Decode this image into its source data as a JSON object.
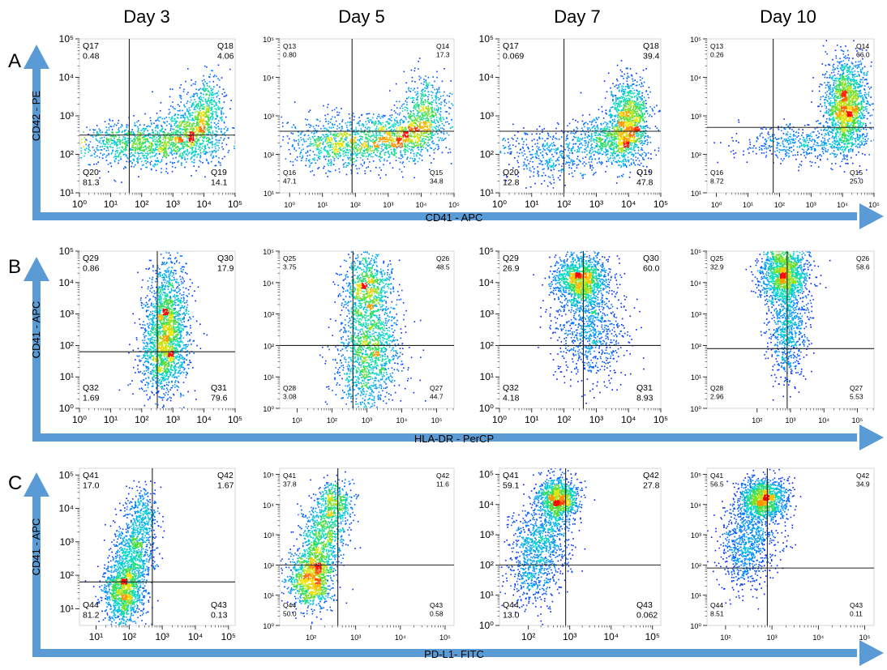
{
  "columns": [
    "Day 3",
    "Day 5",
    "Day 7",
    "Day 10"
  ],
  "panel_letters": [
    "A",
    "B",
    "C"
  ],
  "axes": {
    "x": [
      "CD41 - APC",
      "HLA-DR - PerCP",
      "PD-L1- FITC"
    ],
    "y": [
      "CD42 - PE",
      "CD41 - APC",
      "CD41 - APC"
    ]
  },
  "colors": {
    "arrow": "#5b9bd5",
    "quadrant_line": "#222222",
    "density_low": "#0000ff",
    "density_high": "#ff0000"
  },
  "chart_data": [
    {
      "type": "scatter",
      "row": "A",
      "day": "Day 3",
      "xlabel": "CD41 - APC",
      "ylabel": "CD42 - PE",
      "xlim": [
        0,
        5
      ],
      "ylim": [
        1,
        5
      ],
      "x_ticks": [
        0,
        1,
        2,
        3,
        4,
        5
      ],
      "y_ticks": [
        1,
        2,
        3,
        4,
        5
      ],
      "gate": {
        "x": 1.6,
        "y": 2.5
      },
      "quadrants": [
        {
          "label": "Q17",
          "value": "0.48",
          "pos": "tl"
        },
        {
          "label": "Q18",
          "value": "4.06",
          "pos": "tr"
        },
        {
          "label": "Q20",
          "value": "81.3",
          "pos": "bl"
        },
        {
          "label": "Q19",
          "value": "14.1",
          "pos": "br"
        }
      ],
      "clusters": [
        {
          "x": 2.2,
          "y": 2.3,
          "sx": 1.2,
          "sy": 0.3,
          "w": 0.55
        },
        {
          "x": 3.6,
          "y": 2.6,
          "sx": 0.5,
          "sy": 0.4,
          "w": 0.25
        },
        {
          "x": 4.0,
          "y": 3.2,
          "sx": 0.35,
          "sy": 0.45,
          "w": 0.2
        }
      ]
    },
    {
      "type": "scatter",
      "row": "A",
      "day": "Day 5",
      "xlabel": "CD41 - APC",
      "ylabel": "CD42 - PE",
      "xlim": [
        -0.3,
        5
      ],
      "ylim": [
        1,
        5
      ],
      "x_ticks": [
        0,
        1,
        2,
        3,
        4,
        5
      ],
      "y_ticks": [
        1,
        2,
        3,
        4,
        5
      ],
      "gate": {
        "x": 1.9,
        "y": 2.6
      },
      "quadrants": [
        {
          "label": "Q13",
          "value": "0.80",
          "pos": "tl"
        },
        {
          "label": "Q14",
          "value": "17.3",
          "pos": "tr"
        },
        {
          "label": "Q16",
          "value": "47.1",
          "pos": "bl"
        },
        {
          "label": "Q15",
          "value": "34.8",
          "pos": "br"
        }
      ],
      "clusters": [
        {
          "x": 1.6,
          "y": 2.3,
          "sx": 0.9,
          "sy": 0.35,
          "w": 0.45
        },
        {
          "x": 3.4,
          "y": 2.5,
          "sx": 0.6,
          "sy": 0.3,
          "w": 0.3
        },
        {
          "x": 4.1,
          "y": 3.1,
          "sx": 0.35,
          "sy": 0.5,
          "w": 0.25
        }
      ]
    },
    {
      "type": "scatter",
      "row": "A",
      "day": "Day 7",
      "xlabel": "CD41 - APC",
      "ylabel": "CD42 - PE",
      "xlim": [
        0,
        5
      ],
      "ylim": [
        1,
        5
      ],
      "x_ticks": [
        0,
        1,
        2,
        3,
        4,
        5
      ],
      "y_ticks": [
        1,
        2,
        3,
        4,
        5
      ],
      "gate": {
        "x": 2.0,
        "y": 2.6
      },
      "quadrants": [
        {
          "label": "Q17",
          "value": "0.069",
          "pos": "tl"
        },
        {
          "label": "Q18",
          "value": "39.4",
          "pos": "tr"
        },
        {
          "label": "Q20",
          "value": "12.8",
          "pos": "bl"
        },
        {
          "label": "Q19",
          "value": "47.8",
          "pos": "br"
        }
      ],
      "clusters": [
        {
          "x": 1.5,
          "y": 2.0,
          "sx": 0.8,
          "sy": 0.35,
          "w": 0.2
        },
        {
          "x": 3.4,
          "y": 2.4,
          "sx": 0.6,
          "sy": 0.35,
          "w": 0.3
        },
        {
          "x": 4.0,
          "y": 2.9,
          "sx": 0.3,
          "sy": 0.55,
          "w": 0.5
        }
      ]
    },
    {
      "type": "scatter",
      "row": "A",
      "day": "Day 10",
      "xlabel": "CD41 - APC",
      "ylabel": "CD42 - PE",
      "xlim": [
        -0.3,
        5
      ],
      "ylim": [
        1,
        5
      ],
      "x_ticks": [
        0,
        1,
        2,
        3,
        4,
        5
      ],
      "y_ticks": [
        1,
        2,
        3,
        4,
        5
      ],
      "gate": {
        "x": 1.8,
        "y": 2.7
      },
      "quadrants": [
        {
          "label": "Q13",
          "value": "0.26",
          "pos": "tl"
        },
        {
          "label": "Q14",
          "value": "66.0",
          "pos": "tr"
        },
        {
          "label": "Q16",
          "value": "8.72",
          "pos": "bl"
        },
        {
          "label": "Q15",
          "value": "25.0",
          "pos": "br"
        }
      ],
      "clusters": [
        {
          "x": 2.8,
          "y": 2.3,
          "sx": 1.0,
          "sy": 0.25,
          "w": 0.25
        },
        {
          "x": 4.1,
          "y": 3.3,
          "sx": 0.35,
          "sy": 0.6,
          "w": 0.75
        }
      ]
    },
    {
      "type": "scatter",
      "row": "B",
      "day": "Day 3",
      "xlabel": "HLA-DR - PerCP",
      "ylabel": "CD41 - APC",
      "xlim": [
        0,
        5
      ],
      "ylim": [
        0,
        5
      ],
      "x_ticks": [
        0,
        1,
        2,
        3,
        4,
        5
      ],
      "y_ticks": [
        0,
        1,
        2,
        3,
        4,
        5
      ],
      "gate": {
        "x": 2.5,
        "y": 1.8
      },
      "quadrants": [
        {
          "label": "Q29",
          "value": "0.86",
          "pos": "tl"
        },
        {
          "label": "Q30",
          "value": "17.9",
          "pos": "tr"
        },
        {
          "label": "Q32",
          "value": "1.69",
          "pos": "bl"
        },
        {
          "label": "Q31",
          "value": "79.6",
          "pos": "br"
        }
      ],
      "clusters": [
        {
          "x": 2.8,
          "y": 2.8,
          "sx": 0.35,
          "sy": 1.0,
          "w": 0.7
        },
        {
          "x": 2.6,
          "y": 1.6,
          "sx": 0.4,
          "sy": 0.6,
          "w": 0.3
        }
      ]
    },
    {
      "type": "scatter",
      "row": "B",
      "day": "Day 5",
      "xlabel": "HLA-DR - PerCP",
      "ylabel": "CD41 - APC",
      "xlim": [
        0.5,
        5.5
      ],
      "ylim": [
        0,
        5
      ],
      "x_ticks": [
        1,
        2,
        3,
        4,
        5
      ],
      "y_ticks": [
        0,
        1,
        2,
        3,
        4,
        5
      ],
      "gate": {
        "x": 2.6,
        "y": 2.0
      },
      "quadrants": [
        {
          "label": "Q25",
          "value": "3.75",
          "pos": "tl"
        },
        {
          "label": "Q26",
          "value": "48.5",
          "pos": "tr"
        },
        {
          "label": "Q28",
          "value": "3.08",
          "pos": "bl"
        },
        {
          "label": "Q27",
          "value": "44.7",
          "pos": "br"
        }
      ],
      "clusters": [
        {
          "x": 3.0,
          "y": 3.8,
          "sx": 0.35,
          "sy": 0.6,
          "w": 0.4
        },
        {
          "x": 3.1,
          "y": 2.0,
          "sx": 0.45,
          "sy": 0.7,
          "w": 0.45
        },
        {
          "x": 2.9,
          "y": 0.8,
          "sx": 0.45,
          "sy": 0.5,
          "w": 0.15
        }
      ]
    },
    {
      "type": "scatter",
      "row": "B",
      "day": "Day 7",
      "xlabel": "HLA-DR - PerCP",
      "ylabel": "CD41 - APC",
      "xlim": [
        0,
        5
      ],
      "ylim": [
        0,
        5
      ],
      "x_ticks": [
        0,
        1,
        2,
        3,
        4,
        5
      ],
      "y_ticks": [
        0,
        1,
        2,
        3,
        4,
        5
      ],
      "gate": {
        "x": 2.6,
        "y": 2.0
      },
      "quadrants": [
        {
          "label": "Q29",
          "value": "26.9",
          "pos": "tl"
        },
        {
          "label": "Q30",
          "value": "60.0",
          "pos": "tr"
        },
        {
          "label": "Q32",
          "value": "4.18",
          "pos": "bl"
        },
        {
          "label": "Q31",
          "value": "8.93",
          "pos": "br"
        }
      ],
      "clusters": [
        {
          "x": 2.5,
          "y": 4.1,
          "sx": 0.4,
          "sy": 0.4,
          "w": 0.6
        },
        {
          "x": 2.8,
          "y": 2.5,
          "sx": 0.55,
          "sy": 0.8,
          "w": 0.4
        }
      ]
    },
    {
      "type": "scatter",
      "row": "B",
      "day": "Day 10",
      "xlabel": "HLA-DR - PerCP",
      "ylabel": "CD41 - APC",
      "xlim": [
        0.5,
        5.5
      ],
      "ylim": [
        0,
        5
      ],
      "x_ticks": [
        2,
        3,
        4,
        5
      ],
      "y_ticks": [
        0,
        1,
        2,
        3,
        4,
        5
      ],
      "gate": {
        "x": 2.9,
        "y": 1.9
      },
      "quadrants": [
        {
          "label": "Q25",
          "value": "32.9",
          "pos": "tl"
        },
        {
          "label": "Q26",
          "value": "58.6",
          "pos": "tr"
        },
        {
          "label": "Q28",
          "value": "2.96",
          "pos": "bl"
        },
        {
          "label": "Q27",
          "value": "5.53",
          "pos": "br"
        }
      ],
      "clusters": [
        {
          "x": 2.8,
          "y": 4.3,
          "sx": 0.35,
          "sy": 0.45,
          "w": 0.65
        },
        {
          "x": 2.9,
          "y": 2.5,
          "sx": 0.3,
          "sy": 0.8,
          "w": 0.35
        }
      ]
    },
    {
      "type": "scatter",
      "row": "C",
      "day": "Day 3",
      "xlabel": "PD-L1- FITC",
      "ylabel": "CD41 - APC",
      "xlim": [
        0.5,
        5.2
      ],
      "ylim": [
        0.5,
        5.2
      ],
      "x_ticks": [
        1,
        2,
        3,
        4,
        5
      ],
      "y_ticks": [
        1,
        2,
        3,
        4,
        5
      ],
      "gate": {
        "x": 2.7,
        "y": 1.8
      },
      "quadrants": [
        {
          "label": "Q41",
          "value": "17.0",
          "pos": "tl"
        },
        {
          "label": "Q42",
          "value": "1.67",
          "pos": "tr"
        },
        {
          "label": "Q44",
          "value": "81.2",
          "pos": "bl"
        },
        {
          "label": "Q43",
          "value": "0.13",
          "pos": "br"
        }
      ],
      "clusters": [
        {
          "x": 1.8,
          "y": 1.5,
          "sx": 0.3,
          "sy": 0.5,
          "w": 0.5
        },
        {
          "x": 2.1,
          "y": 2.6,
          "sx": 0.3,
          "sy": 0.6,
          "w": 0.35
        },
        {
          "x": 2.4,
          "y": 3.8,
          "sx": 0.25,
          "sy": 0.4,
          "w": 0.15
        }
      ]
    },
    {
      "type": "scatter",
      "row": "C",
      "day": "Day 5",
      "xlabel": "PD-L1- FITC",
      "ylabel": "CD41 - APC",
      "xlim": [
        1.3,
        5.2
      ],
      "ylim": [
        0,
        5.2
      ],
      "x_ticks": [
        2,
        3,
        4,
        5
      ],
      "y_ticks": [
        0,
        1,
        2,
        3,
        4,
        5
      ],
      "gate": {
        "x": 2.6,
        "y": 2.0
      },
      "quadrants": [
        {
          "label": "Q41",
          "value": "37.8",
          "pos": "tl"
        },
        {
          "label": "Q42",
          "value": "11.6",
          "pos": "tr"
        },
        {
          "label": "Q44",
          "value": "50.0",
          "pos": "bl"
        },
        {
          "label": "Q43",
          "value": "0.58",
          "pos": "br"
        }
      ],
      "clusters": [
        {
          "x": 2.0,
          "y": 1.6,
          "sx": 0.25,
          "sy": 0.5,
          "w": 0.5
        },
        {
          "x": 2.3,
          "y": 3.0,
          "sx": 0.25,
          "sy": 0.5,
          "w": 0.3
        },
        {
          "x": 2.5,
          "y": 4.1,
          "sx": 0.2,
          "sy": 0.35,
          "w": 0.2
        }
      ]
    },
    {
      "type": "scatter",
      "row": "C",
      "day": "Day 7",
      "xlabel": "PD-L1- FITC",
      "ylabel": "CD41 - APC",
      "xlim": [
        1.3,
        5.2
      ],
      "ylim": [
        0,
        5.2
      ],
      "x_ticks": [
        2,
        3,
        4,
        5
      ],
      "y_ticks": [
        0,
        1,
        2,
        3,
        4,
        5
      ],
      "gate": {
        "x": 2.9,
        "y": 2.0
      },
      "quadrants": [
        {
          "label": "Q41",
          "value": "59.1",
          "pos": "tl"
        },
        {
          "label": "Q42",
          "value": "27.8",
          "pos": "tr"
        },
        {
          "label": "Q44",
          "value": "13.0",
          "pos": "bl"
        },
        {
          "label": "Q43",
          "value": "0.062",
          "pos": "br"
        }
      ],
      "clusters": [
        {
          "x": 2.7,
          "y": 4.2,
          "sx": 0.25,
          "sy": 0.35,
          "w": 0.5
        },
        {
          "x": 2.3,
          "y": 2.8,
          "sx": 0.35,
          "sy": 0.6,
          "w": 0.35
        },
        {
          "x": 2.0,
          "y": 1.6,
          "sx": 0.3,
          "sy": 0.5,
          "w": 0.15
        }
      ]
    },
    {
      "type": "scatter",
      "row": "C",
      "day": "Day 10",
      "xlabel": "PD-L1- FITC",
      "ylabel": "CD41 - APC",
      "xlim": [
        1.6,
        5.2
      ],
      "ylim": [
        0,
        5.2
      ],
      "x_ticks": [
        2,
        3,
        4,
        5
      ],
      "y_ticks": [
        0,
        1,
        2,
        3,
        4,
        5
      ],
      "gate": {
        "x": 2.9,
        "y": 1.9
      },
      "quadrants": [
        {
          "label": "Q41",
          "value": "56.5",
          "pos": "tl"
        },
        {
          "label": "Q42",
          "value": "34.9",
          "pos": "tr"
        },
        {
          "label": "Q44",
          "value": "8.51",
          "pos": "bl"
        },
        {
          "label": "Q43",
          "value": "0.11",
          "pos": "br"
        }
      ],
      "clusters": [
        {
          "x": 2.8,
          "y": 4.2,
          "sx": 0.25,
          "sy": 0.35,
          "w": 0.6
        },
        {
          "x": 2.5,
          "y": 3.0,
          "sx": 0.3,
          "sy": 0.6,
          "w": 0.3
        },
        {
          "x": 2.4,
          "y": 2.0,
          "sx": 0.3,
          "sy": 0.5,
          "w": 0.1
        }
      ]
    }
  ]
}
